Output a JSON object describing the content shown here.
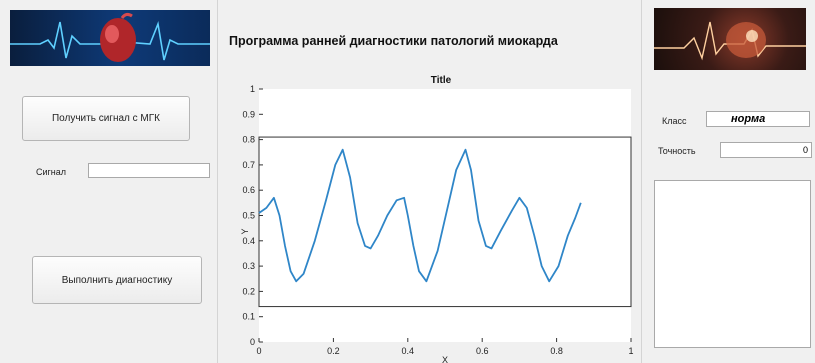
{
  "app": {
    "title": "Программа ранней диагностики патологий миокарда"
  },
  "left": {
    "get_signal_label": "Получить сигнал с МГК",
    "signal_label": "Сигнал",
    "signal_value": "",
    "run_diagnosis_label": "Выполнить диагностику"
  },
  "right": {
    "class_label": "Класс",
    "class_value": "норма",
    "accuracy_label": "Точность",
    "accuracy_value": "0",
    "output_text": ""
  },
  "chart_data": {
    "type": "line",
    "title": "Title",
    "xlabel": "X",
    "ylabel": "Y",
    "xlim": [
      0,
      1
    ],
    "ylim": [
      0,
      1
    ],
    "x_ticks": [
      "0",
      "0.2",
      "0.4",
      "0.6",
      "0.8",
      "1"
    ],
    "y_ticks": [
      "0",
      "0.1",
      "0.2",
      "0.3",
      "0.4",
      "0.5",
      "0.6",
      "0.7",
      "0.8",
      "0.9",
      "1"
    ],
    "inner_box_y": [
      0.14,
      0.81
    ],
    "series_color": "#2f86c8",
    "x": [
      0,
      0.02,
      0.04,
      0.055,
      0.07,
      0.085,
      0.1,
      0.12,
      0.15,
      0.18,
      0.205,
      0.225,
      0.245,
      0.265,
      0.285,
      0.3,
      0.32,
      0.345,
      0.37,
      0.39,
      0.4,
      0.415,
      0.43,
      0.45,
      0.48,
      0.51,
      0.53,
      0.555,
      0.57,
      0.59,
      0.61,
      0.625,
      0.65,
      0.68,
      0.7,
      0.72,
      0.74,
      0.76,
      0.78,
      0.805,
      0.83,
      0.85,
      0.865
    ],
    "y": [
      0.51,
      0.53,
      0.57,
      0.5,
      0.38,
      0.28,
      0.24,
      0.27,
      0.4,
      0.56,
      0.7,
      0.76,
      0.65,
      0.47,
      0.38,
      0.37,
      0.42,
      0.5,
      0.56,
      0.57,
      0.5,
      0.38,
      0.28,
      0.24,
      0.36,
      0.55,
      0.68,
      0.76,
      0.68,
      0.48,
      0.38,
      0.37,
      0.44,
      0.52,
      0.57,
      0.53,
      0.42,
      0.3,
      0.24,
      0.3,
      0.42,
      0.49,
      0.55
    ]
  }
}
